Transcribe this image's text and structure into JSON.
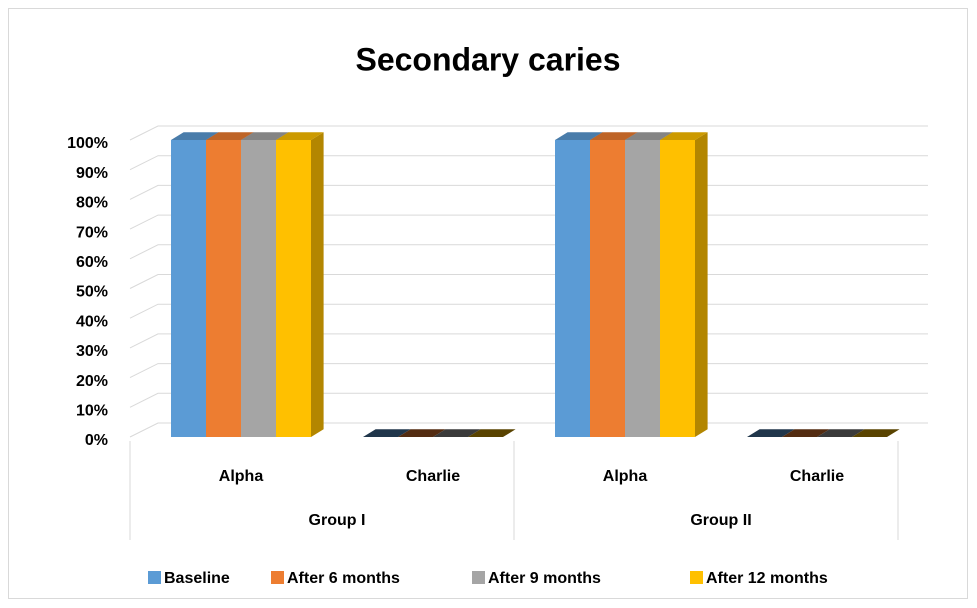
{
  "chart_data": {
    "type": "bar3d",
    "title": "Secondary caries",
    "categories": [
      "Alpha",
      "Charlie",
      "Alpha",
      "Charlie"
    ],
    "category_groups": [
      "Group I",
      "Group II"
    ],
    "series": [
      {
        "name": "Baseline",
        "color": "#5b9bd5",
        "values": [
          100,
          0,
          100,
          0
        ]
      },
      {
        "name": "After 6 months",
        "color": "#ed7d31",
        "values": [
          100,
          0,
          100,
          0
        ]
      },
      {
        "name": "After 9 months",
        "color": "#a5a5a5",
        "values": [
          100,
          0,
          100,
          0
        ]
      },
      {
        "name": "After 12 months",
        "color": "#ffc000",
        "values": [
          100,
          0,
          100,
          0
        ]
      }
    ],
    "ylim": [
      0,
      100
    ],
    "yticks": [
      {
        "value": 0,
        "label": "0%"
      },
      {
        "value": 10,
        "label": "10%"
      },
      {
        "value": 20,
        "label": "20%"
      },
      {
        "value": 30,
        "label": "30%"
      },
      {
        "value": 40,
        "label": "40%"
      },
      {
        "value": 50,
        "label": "50%"
      },
      {
        "value": 60,
        "label": "60%"
      },
      {
        "value": 70,
        "label": "70%"
      },
      {
        "value": 80,
        "label": "80%"
      },
      {
        "value": 90,
        "label": "90%"
      },
      {
        "value": 100,
        "label": "100%"
      }
    ],
    "grid": true,
    "legend": "bottom"
  }
}
